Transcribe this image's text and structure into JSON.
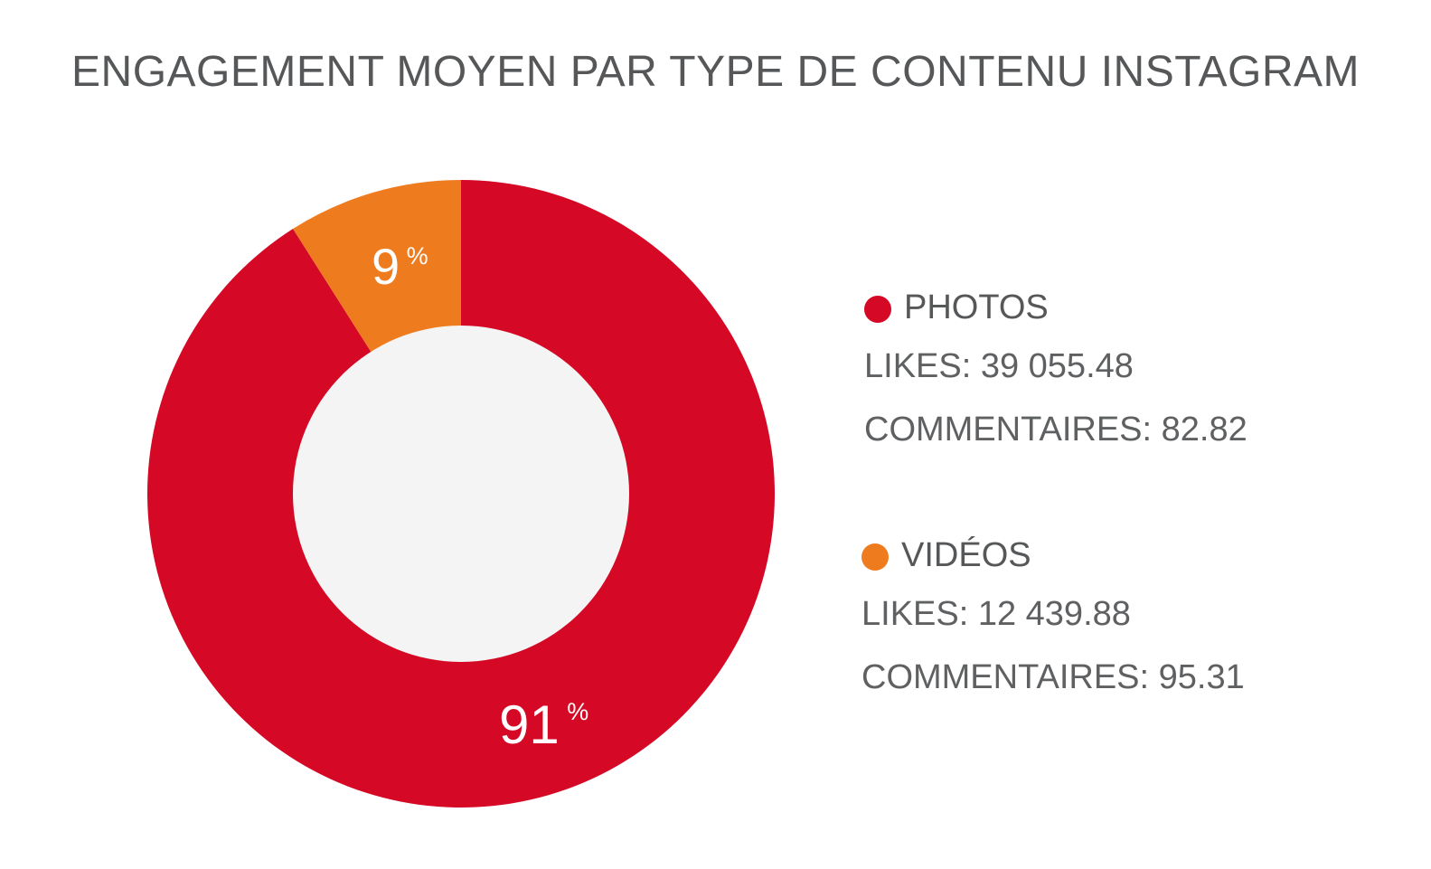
{
  "chart_data": {
    "type": "pie",
    "title": "ENGAGEMENT MOYEN PAR TYPE DE CONTENU INSTAGRAM",
    "slices": [
      {
        "name": "PHOTOS",
        "value": 91,
        "label": "91",
        "unit": "%",
        "color": "#d50925",
        "stats": {
          "likes": "LIKES: 39 055.48",
          "comments": "COMMENTAIRES: 82.82"
        }
      },
      {
        "name": "VIDÉOS",
        "value": 9,
        "label": "9",
        "unit": "%",
        "color": "#ef7b1f",
        "stats": {
          "likes": "LIKES: 12 439.88",
          "comments": "COMMENTAIRES: 95.31"
        }
      }
    ],
    "center_color": "#f4f4f4",
    "legend_position": "right"
  }
}
